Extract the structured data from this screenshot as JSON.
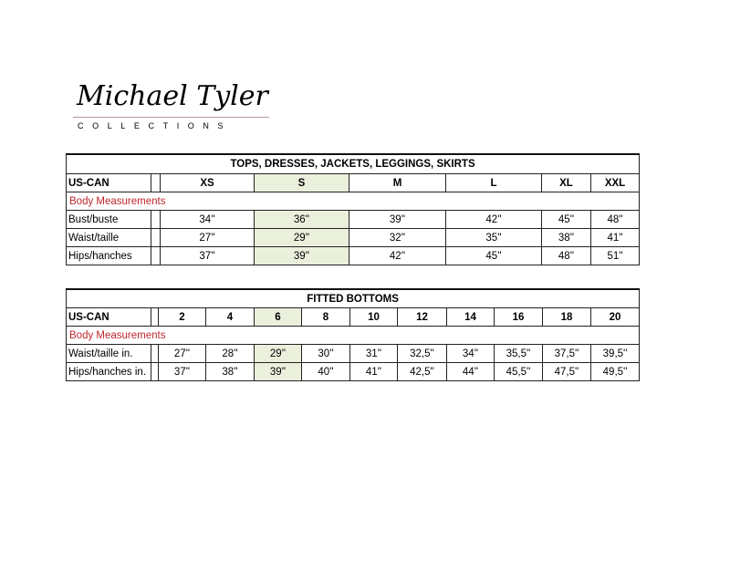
{
  "logo": {
    "name": "Michael Tyler",
    "sub": "COLLECTIONS"
  },
  "highlight_color": "#ebf0dd",
  "label_color": "#c0272d",
  "tops": {
    "title": "TOPS, DRESSES, JACKETS, LEGGINGS, SKIRTS",
    "header_label": "US-CAN",
    "sizes": [
      "XS",
      "S",
      "M",
      "L",
      "XL",
      "XXL"
    ],
    "highlight_index": 1,
    "section_label": "Body Measurements",
    "rows": [
      {
        "label": "Bust/buste",
        "values": [
          "34''",
          "36''",
          "39''",
          "42''",
          "45''",
          "48''"
        ]
      },
      {
        "label": "Waist/taille",
        "values": [
          "27''",
          "29''",
          "32''",
          "35''",
          "38''",
          "41''"
        ]
      },
      {
        "label": "Hips/hanches",
        "values": [
          "37''",
          "39''",
          "42''",
          "45''",
          "48''",
          "51''"
        ]
      }
    ]
  },
  "bottoms": {
    "title": "FITTED BOTTOMS",
    "header_label": "US-CAN",
    "sizes": [
      "2",
      "4",
      "6",
      "8",
      "10",
      "12",
      "14",
      "16",
      "18",
      "20"
    ],
    "highlight_index": 2,
    "section_label": "Body Measurements",
    "rows": [
      {
        "label": "Waist/taille in.",
        "values": [
          "27''",
          "28''",
          "29''",
          "30''",
          "31''",
          "32,5''",
          "34''",
          "35,5''",
          "37,5''",
          "39,5''"
        ]
      },
      {
        "label": "Hips/hanches in.",
        "values": [
          "37''",
          "38''",
          "39''",
          "40''",
          "41''",
          "42,5''",
          "44''",
          "45,5''",
          "47,5''",
          "49,5''"
        ]
      }
    ]
  }
}
